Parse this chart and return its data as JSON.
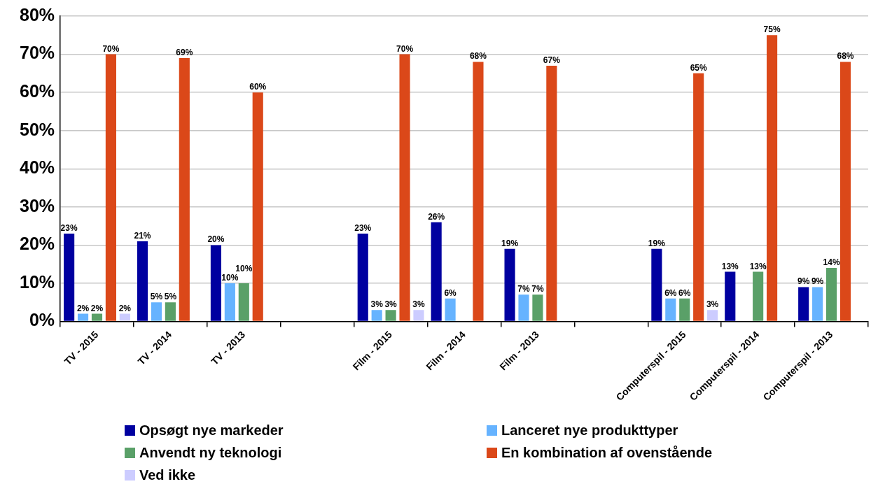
{
  "chart_data": {
    "type": "bar",
    "categories": [
      "TV - 2015",
      "TV - 2014",
      "TV - 2013",
      null,
      "Film - 2015",
      "Film - 2014",
      "Film - 2013",
      null,
      "Computerspil - 2015",
      "Computerspil - 2014",
      "Computerspil - 2013"
    ],
    "series": [
      {
        "name": "Opsøgt nye markeder",
        "color": "#0000a0",
        "values": [
          23,
          21,
          20,
          null,
          23,
          26,
          19,
          null,
          19,
          13,
          9
        ],
        "value_labels": [
          "23%",
          "21%",
          "20%",
          null,
          "23%",
          "26%",
          "19%",
          null,
          "19%",
          "13%",
          "9%"
        ]
      },
      {
        "name": "Lanceret nye produkttyper",
        "color": "#66b3ff",
        "values": [
          2,
          5,
          10,
          null,
          3,
          6,
          7,
          null,
          6,
          null,
          9
        ],
        "value_labels": [
          "2%",
          "5%",
          "10%",
          null,
          "3%",
          "6%",
          "7%",
          null,
          "6%",
          null,
          "9%"
        ]
      },
      {
        "name": "Anvendt ny teknologi",
        "color": "#5aa068",
        "values": [
          2,
          5,
          10,
          null,
          3,
          null,
          7,
          null,
          6,
          13,
          14
        ],
        "value_labels": [
          "2%",
          "5%",
          "10%",
          null,
          "3%",
          null,
          "7%",
          null,
          "6%",
          "13%",
          "14%"
        ]
      },
      {
        "name": "En kombination af ovenstående",
        "color": "#db4819",
        "values": [
          70,
          69,
          60,
          null,
          70,
          68,
          67,
          null,
          65,
          75,
          68
        ],
        "value_labels": [
          "70%",
          "69%",
          "60%",
          null,
          "70%",
          "68%",
          "67%",
          null,
          "65%",
          "75%",
          "68%"
        ]
      },
      {
        "name": "Ved ikke",
        "color": "#ccccff",
        "values": [
          2,
          null,
          null,
          null,
          3,
          null,
          null,
          null,
          3,
          null,
          null
        ],
        "value_labels": [
          "2%",
          null,
          null,
          null,
          "3%",
          null,
          null,
          null,
          "3%",
          null,
          null
        ]
      }
    ],
    "ylim": [
      0,
      80
    ],
    "yticks": [
      {
        "value": 0,
        "label": "0%"
      },
      {
        "value": 10,
        "label": "10%"
      },
      {
        "value": 20,
        "label": "20%"
      },
      {
        "value": 30,
        "label": "30%"
      },
      {
        "value": 40,
        "label": "40%"
      },
      {
        "value": 50,
        "label": "50%"
      },
      {
        "value": 60,
        "label": "60%"
      },
      {
        "value": 70,
        "label": "70%"
      },
      {
        "value": 80,
        "label": "80%"
      }
    ],
    "grid": "y",
    "legend": "bottom"
  }
}
